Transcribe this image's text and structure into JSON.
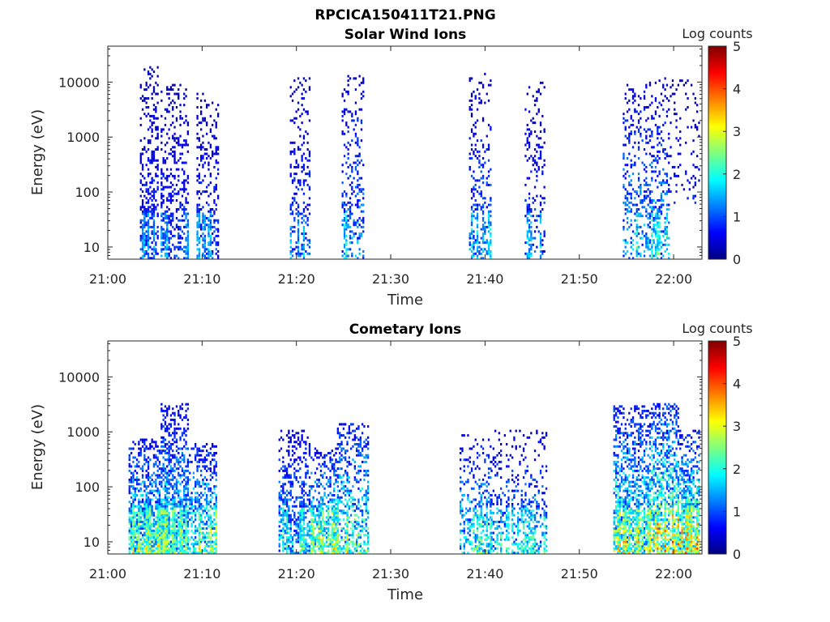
{
  "figure": {
    "file_title": "RPCICA150411T21.PNG"
  },
  "chart_data": [
    {
      "type": "heatmap",
      "title": "Solar Wind Ions",
      "xlabel": "Time",
      "ylabel": "Energy (eV)",
      "y_scale": "log",
      "ylim": [
        6,
        45000
      ],
      "xlim": [
        "21:00",
        "22:03"
      ],
      "x_ticks": [
        "21:00",
        "21:10",
        "21:20",
        "21:30",
        "21:40",
        "21:50",
        "22:00"
      ],
      "y_ticks": [
        "10",
        "100",
        "1000",
        "10000"
      ],
      "colorbar": {
        "label": "Log counts",
        "ticks": [
          "0",
          "1",
          "2",
          "3",
          "4",
          "5"
        ],
        "range": [
          0,
          5
        ],
        "colormap": "jet"
      },
      "grid": false,
      "bursts": [
        {
          "start_min": 3.4,
          "end_min": 5.4,
          "e_min": 6,
          "e_max": 18000,
          "intensity": 0.9,
          "density": 0.45
        },
        {
          "start_min": 5.6,
          "end_min": 8.6,
          "e_min": 6,
          "e_max": 9000,
          "intensity": 0.9,
          "density": 0.4
        },
        {
          "start_min": 9.4,
          "end_min": 11.6,
          "e_min": 6,
          "e_max": 6000,
          "intensity": 0.9,
          "density": 0.3
        },
        {
          "start_min": 19.3,
          "end_min": 21.3,
          "e_min": 6,
          "e_max": 12000,
          "intensity": 1.0,
          "density": 0.25
        },
        {
          "start_min": 24.8,
          "end_min": 27.0,
          "e_min": 6,
          "e_max": 14000,
          "intensity": 1.3,
          "density": 0.3
        },
        {
          "start_min": 38.3,
          "end_min": 40.6,
          "e_min": 6,
          "e_max": 14000,
          "intensity": 1.2,
          "density": 0.3
        },
        {
          "start_min": 44.2,
          "end_min": 46.4,
          "e_min": 6,
          "e_max": 10000,
          "intensity": 1.0,
          "density": 0.25
        },
        {
          "start_min": 54.6,
          "end_min": 59.6,
          "e_min": 6,
          "e_max": 12000,
          "intensity": 1.5,
          "density": 0.3
        },
        {
          "start_min": 59.6,
          "end_min": 62.8,
          "e_min": 60,
          "e_max": 11000,
          "intensity": 0.9,
          "density": 0.15
        }
      ]
    },
    {
      "type": "heatmap",
      "title": "Cometary Ions",
      "xlabel": "Time",
      "ylabel": "Energy (eV)",
      "y_scale": "log",
      "ylim": [
        6,
        45000
      ],
      "xlim": [
        "21:00",
        "22:03"
      ],
      "x_ticks": [
        "21:00",
        "21:10",
        "21:20",
        "21:30",
        "21:40",
        "21:50",
        "22:00"
      ],
      "y_ticks": [
        "10",
        "100",
        "1000",
        "10000"
      ],
      "colorbar": {
        "label": "Log counts",
        "ticks": [
          "0",
          "1",
          "2",
          "3",
          "4",
          "5"
        ],
        "range": [
          0,
          5
        ],
        "colormap": "jet"
      },
      "grid": false,
      "bursts": [
        {
          "start_min": 2.2,
          "end_min": 5.6,
          "e_min": 6,
          "e_max": 700,
          "intensity": 2.2,
          "density": 0.75
        },
        {
          "start_min": 5.6,
          "end_min": 8.6,
          "e_min": 6,
          "e_max": 3200,
          "intensity": 2.0,
          "density": 0.7
        },
        {
          "start_min": 8.6,
          "end_min": 11.4,
          "e_min": 6,
          "e_max": 600,
          "intensity": 2.2,
          "density": 0.55
        },
        {
          "start_min": 18.1,
          "end_min": 21.3,
          "e_min": 6,
          "e_max": 1000,
          "intensity": 1.6,
          "density": 0.5
        },
        {
          "start_min": 21.3,
          "end_min": 24.3,
          "e_min": 6,
          "e_max": 500,
          "intensity": 2.2,
          "density": 0.5
        },
        {
          "start_min": 24.3,
          "end_min": 27.6,
          "e_min": 6,
          "e_max": 1400,
          "intensity": 2.3,
          "density": 0.5
        },
        {
          "start_min": 37.3,
          "end_min": 40.6,
          "e_min": 6,
          "e_max": 900,
          "intensity": 1.8,
          "density": 0.35
        },
        {
          "start_min": 40.6,
          "end_min": 46.5,
          "e_min": 6,
          "e_max": 1000,
          "intensity": 1.5,
          "density": 0.25
        },
        {
          "start_min": 53.6,
          "end_min": 57.6,
          "e_min": 6,
          "e_max": 2800,
          "intensity": 2.4,
          "density": 0.7
        },
        {
          "start_min": 57.6,
          "end_min": 60.6,
          "e_min": 6,
          "e_max": 3300,
          "intensity": 2.8,
          "density": 0.7
        },
        {
          "start_min": 60.6,
          "end_min": 62.8,
          "e_min": 6,
          "e_max": 1000,
          "intensity": 2.7,
          "density": 0.75
        }
      ]
    }
  ]
}
